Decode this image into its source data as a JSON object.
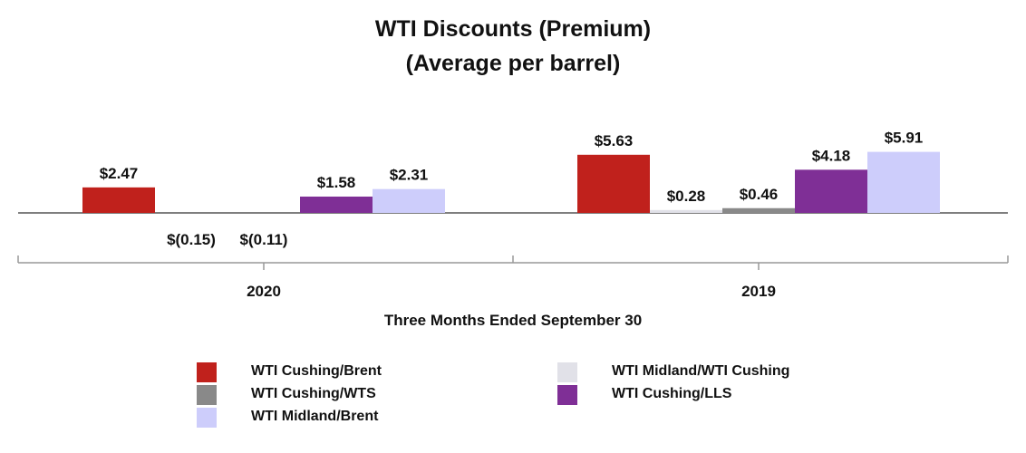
{
  "chart_data": {
    "type": "bar",
    "title": "WTI Discounts (Premium)",
    "subtitle": "(Average per barrel)",
    "xlabel": "Three Months Ended September 30",
    "ylabel": "",
    "categories": [
      "2020",
      "2019"
    ],
    "series": [
      {
        "name": "WTI Cushing/Brent",
        "color": "#c0211c",
        "values": [
          2.47,
          5.63
        ],
        "labels": [
          "$2.47",
          "$5.63"
        ]
      },
      {
        "name": "WTI Midland/WTI Cushing",
        "color": "#e1e1e8",
        "values": [
          -0.15,
          0.28
        ],
        "labels": [
          "$(0.15)",
          "$0.28"
        ]
      },
      {
        "name": "WTI Cushing/WTS",
        "color": "#898989",
        "values": [
          -0.11,
          0.46
        ],
        "labels": [
          "$(0.11)",
          "$0.46"
        ]
      },
      {
        "name": "WTI Cushing/LLS",
        "color": "#7f2f96",
        "values": [
          1.58,
          4.18
        ],
        "labels": [
          "$1.58",
          "$4.18"
        ]
      },
      {
        "name": "WTI Midland/Brent",
        "color": "#cdcdfb",
        "values": [
          2.31,
          5.91
        ],
        "labels": [
          "$2.31",
          "$5.91"
        ]
      }
    ],
    "legend": [
      {
        "name": "WTI Cushing/Brent",
        "color": "#c0211c"
      },
      {
        "name": "WTI Cushing/WTS",
        "color": "#898989"
      },
      {
        "name": "WTI Midland/Brent",
        "color": "#cdcdfb"
      },
      {
        "name": "WTI Midland/WTI Cushing",
        "color": "#e1e1e8"
      },
      {
        "name": "WTI Cushing/LLS",
        "color": "#7f2f96"
      }
    ],
    "legend_position": "bottom",
    "grid": false
  }
}
